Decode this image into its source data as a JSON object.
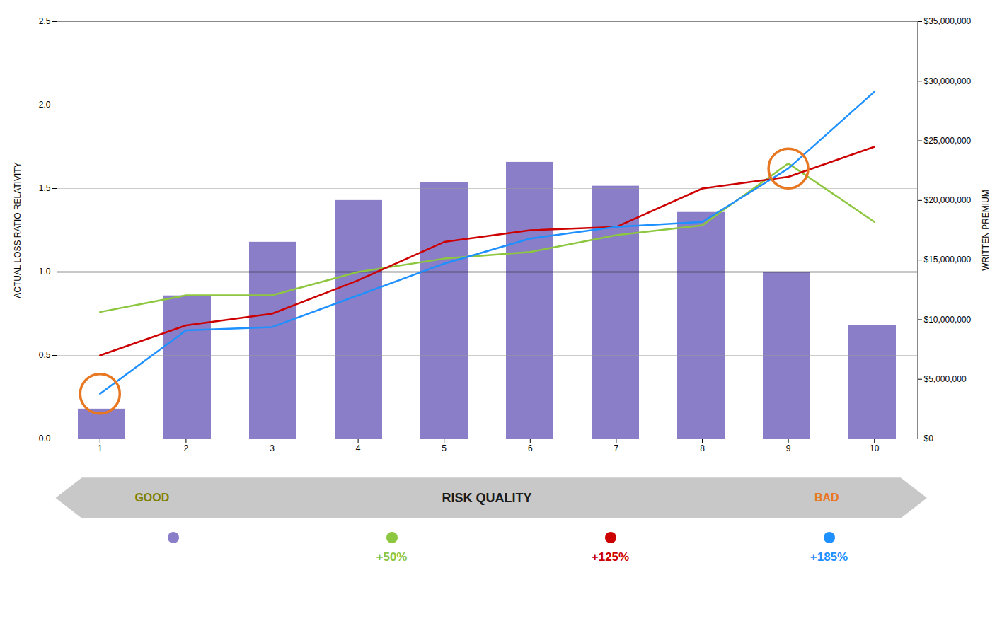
{
  "chart_data": {
    "type": "bar",
    "x": [
      1,
      2,
      3,
      4,
      5,
      6,
      7,
      8,
      9,
      10
    ],
    "xlim": [
      0.5,
      10.5
    ],
    "xticks": [
      1,
      2,
      3,
      4,
      5,
      6,
      7,
      8,
      9,
      10
    ],
    "xlabel": "RISK QUALITY",
    "ylabel": "ACTUAL LOSS RATIO RELATIVITY",
    "y2label": "WRITTEN PREMIUM",
    "ylim": [
      0,
      2.5
    ],
    "yticks": [
      {
        "value": 0,
        "label": "0.0"
      },
      0.5,
      {
        "value": 1.0,
        "label": "1.0"
      },
      1.5,
      {
        "value": 2.0,
        "label": "2.0"
      },
      2.5
    ],
    "y2lim": [
      0,
      35000000
    ],
    "y2ticks": [
      {
        "value": 0,
        "label": "$0"
      },
      {
        "value": 5000000,
        "label": "$5,000,000"
      },
      {
        "value": 10000000,
        "label": "$10,000,000"
      },
      {
        "value": 15000000,
        "label": "$15,000,000"
      },
      {
        "value": 20000000,
        "label": "$20,000,000"
      },
      {
        "value": 25000000,
        "label": "$25,000,000"
      },
      {
        "value": 30000000,
        "label": "$30,000,000"
      },
      {
        "value": 35000000,
        "label": "$35,000,000"
      }
    ],
    "grid": true,
    "legend": "bottom",
    "series": [
      {
        "type": "bar",
        "axis": "y2",
        "color": "#8B7EC8",
        "values": [
          2500000,
          12000000,
          16500000,
          20000000,
          21500000,
          23200000,
          21200000,
          19000000,
          14000000,
          9500000
        ]
      },
      {
        "name": "+50%",
        "type": "line",
        "color": "#8DC63F",
        "values": [
          0.76,
          0.86,
          0.86,
          1.0,
          1.08,
          1.12,
          1.22,
          1.28,
          1.65,
          1.3
        ]
      },
      {
        "name": "+125%",
        "type": "line",
        "color": "#CC0000",
        "values": [
          0.5,
          0.68,
          0.75,
          0.95,
          1.18,
          1.25,
          1.27,
          1.5,
          1.57,
          1.75
        ]
      },
      {
        "name": "+185%",
        "type": "line",
        "color": "#1E90FF",
        "values": [
          0.27,
          0.65,
          0.67,
          0.86,
          1.05,
          1.2,
          1.27,
          1.3,
          1.62,
          2.08
        ]
      }
    ],
    "annotations": [
      {
        "text": "GOOD",
        "color": "#808000"
      },
      {
        "text": "BAD",
        "color": "#E87722"
      }
    ],
    "reference_line": {
      "y": 1.0,
      "color": "#222222"
    },
    "highlight": {
      "series": "+185%",
      "x": [
        1,
        9
      ],
      "color": "#E87722"
    }
  }
}
